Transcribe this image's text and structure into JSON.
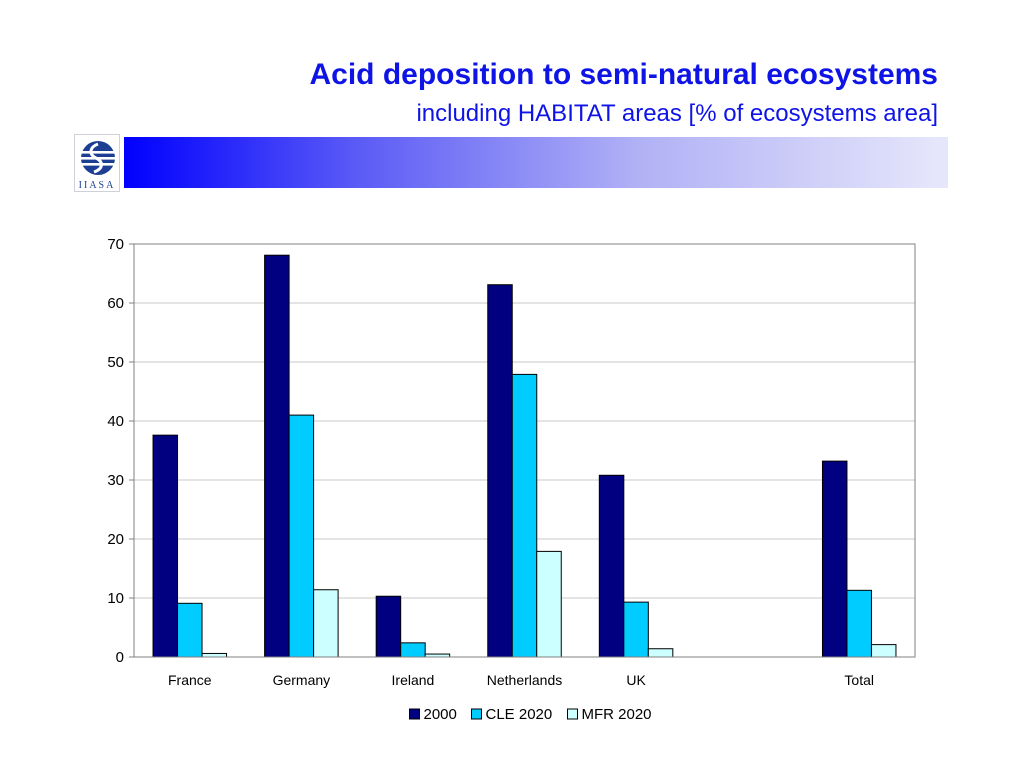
{
  "slide": {
    "title": "Acid deposition to semi-natural ecosystems",
    "subtitle": "including HABITAT areas [% of ecosystems area]",
    "logo_text": "IIASA"
  },
  "colors": {
    "title": "#0f14e6",
    "band_start": "#0000ff",
    "band_end": "#e7e7fb"
  },
  "chart_data": {
    "type": "bar",
    "title": "",
    "xlabel": "",
    "ylabel": "",
    "ylim": [
      0,
      70
    ],
    "yticks": [
      0,
      10,
      20,
      30,
      40,
      50,
      60,
      70
    ],
    "grid": true,
    "legend_position": "bottom",
    "categories": [
      "France",
      "Germany",
      "Ireland",
      "Netherlands",
      "UK",
      "",
      "Total"
    ],
    "series": [
      {
        "name": "2000",
        "color": "#000080",
        "values": [
          37.6,
          68.1,
          10.3,
          63.1,
          30.8,
          null,
          33.2
        ]
      },
      {
        "name": "CLE 2020",
        "color": "#00ccff",
        "values": [
          9.1,
          41.0,
          2.4,
          47.9,
          9.3,
          null,
          11.3
        ]
      },
      {
        "name": "MFR 2020",
        "color": "#ccffff",
        "values": [
          0.6,
          11.4,
          0.5,
          17.9,
          1.4,
          null,
          2.1
        ]
      }
    ]
  }
}
